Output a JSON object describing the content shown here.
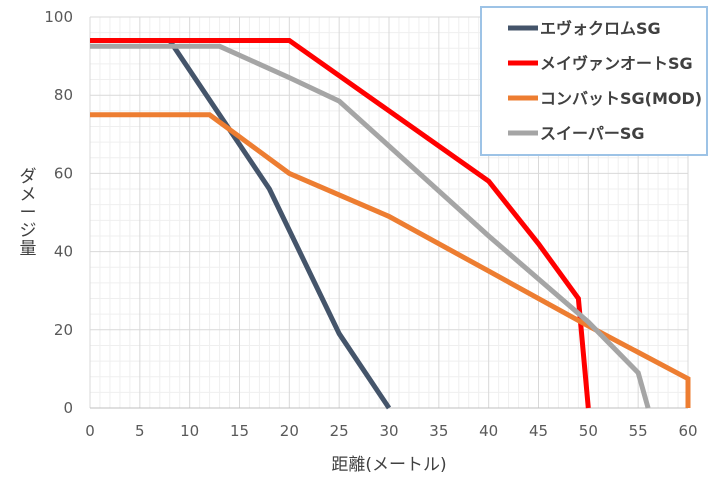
{
  "chart_data": {
    "type": "line",
    "title": "",
    "xlabel": "距離(メートル)",
    "ylabel": "ダメージ量",
    "xlim": [
      0,
      60
    ],
    "ylim": [
      0,
      100
    ],
    "xticks": [
      0,
      5,
      10,
      15,
      20,
      25,
      30,
      35,
      40,
      45,
      50,
      55,
      60
    ],
    "yticks": [
      0,
      20,
      40,
      60,
      80,
      100
    ],
    "grid": true,
    "legend_position": "top-right",
    "series": [
      {
        "name": "エヴォクロムSG",
        "color": "#44546a",
        "points": [
          [
            0,
            94
          ],
          [
            8,
            94
          ],
          [
            18,
            56
          ],
          [
            25,
            19
          ],
          [
            30,
            0
          ]
        ]
      },
      {
        "name": "メイヴァンオートSG",
        "color": "#ff0000",
        "points": [
          [
            0,
            94
          ],
          [
            20,
            94
          ],
          [
            40,
            58
          ],
          [
            45,
            42
          ],
          [
            49,
            28
          ],
          [
            50,
            0
          ]
        ]
      },
      {
        "name": "コンバットSG(MOD)",
        "color": "#ed7d31",
        "points": [
          [
            0,
            75
          ],
          [
            12,
            75
          ],
          [
            20,
            60
          ],
          [
            30,
            49
          ],
          [
            40,
            35
          ],
          [
            50,
            21
          ],
          [
            60,
            7.5
          ],
          [
            60,
            0
          ]
        ]
      },
      {
        "name": "スイーパーSG",
        "color": "#a5a5a5",
        "points": [
          [
            0,
            92.5
          ],
          [
            13,
            92.5
          ],
          [
            20,
            84.5
          ],
          [
            25,
            78.5
          ],
          [
            30,
            67
          ],
          [
            40,
            44
          ],
          [
            50,
            22
          ],
          [
            55,
            9
          ],
          [
            56,
            0
          ]
        ]
      }
    ]
  }
}
